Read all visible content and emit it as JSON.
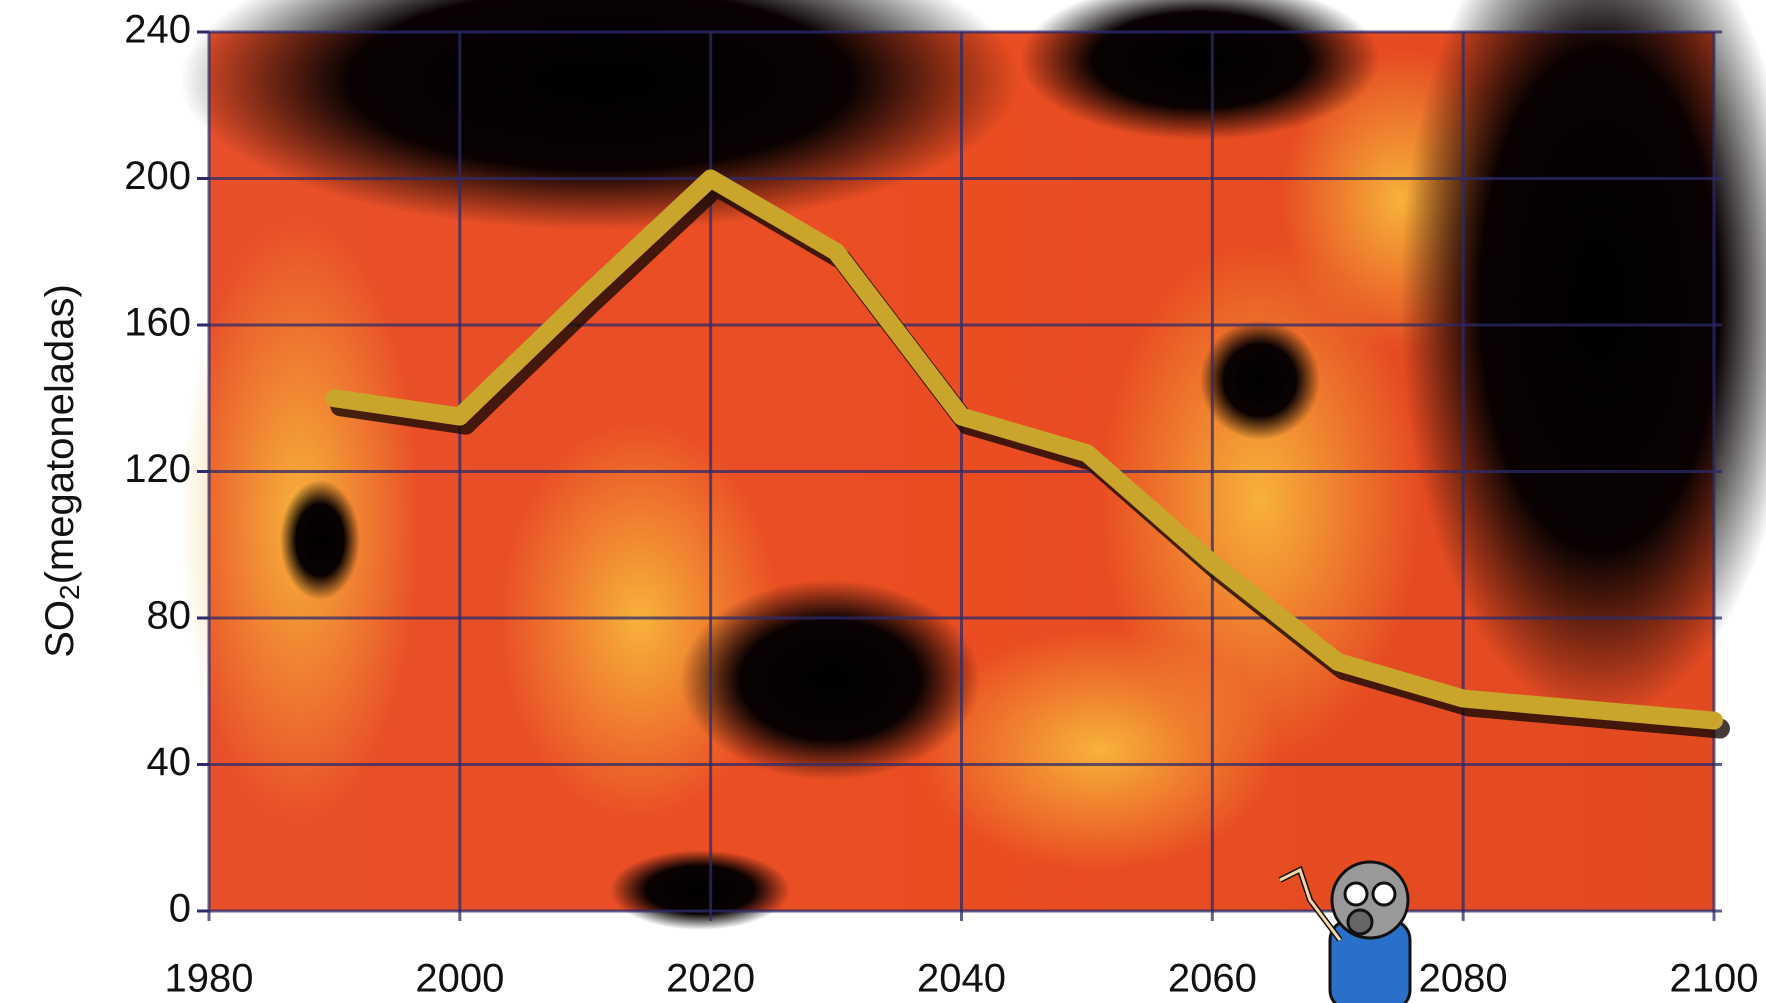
{
  "chart_data": {
    "type": "line",
    "ylabel": {
      "main": "SO",
      "subscript": "2",
      "rest": "(megatoneladas)"
    },
    "x": [
      1990,
      2000,
      2010,
      2020,
      2030,
      2040,
      2050,
      2060,
      2070,
      2080,
      2090,
      2100
    ],
    "series": [
      {
        "color": "#c9a52c",
        "values": [
          140,
          135,
          168,
          200,
          180,
          135,
          125,
          95,
          68,
          58,
          55,
          52
        ]
      }
    ],
    "xlim": [
      1980,
      2100
    ],
    "xticks": [
      1980,
      2000,
      2020,
      2040,
      2060,
      2080,
      2100
    ],
    "ylim": [
      0,
      240
    ],
    "yticks": [
      0,
      40,
      80,
      120,
      160,
      200,
      240
    ],
    "grid": true
  }
}
